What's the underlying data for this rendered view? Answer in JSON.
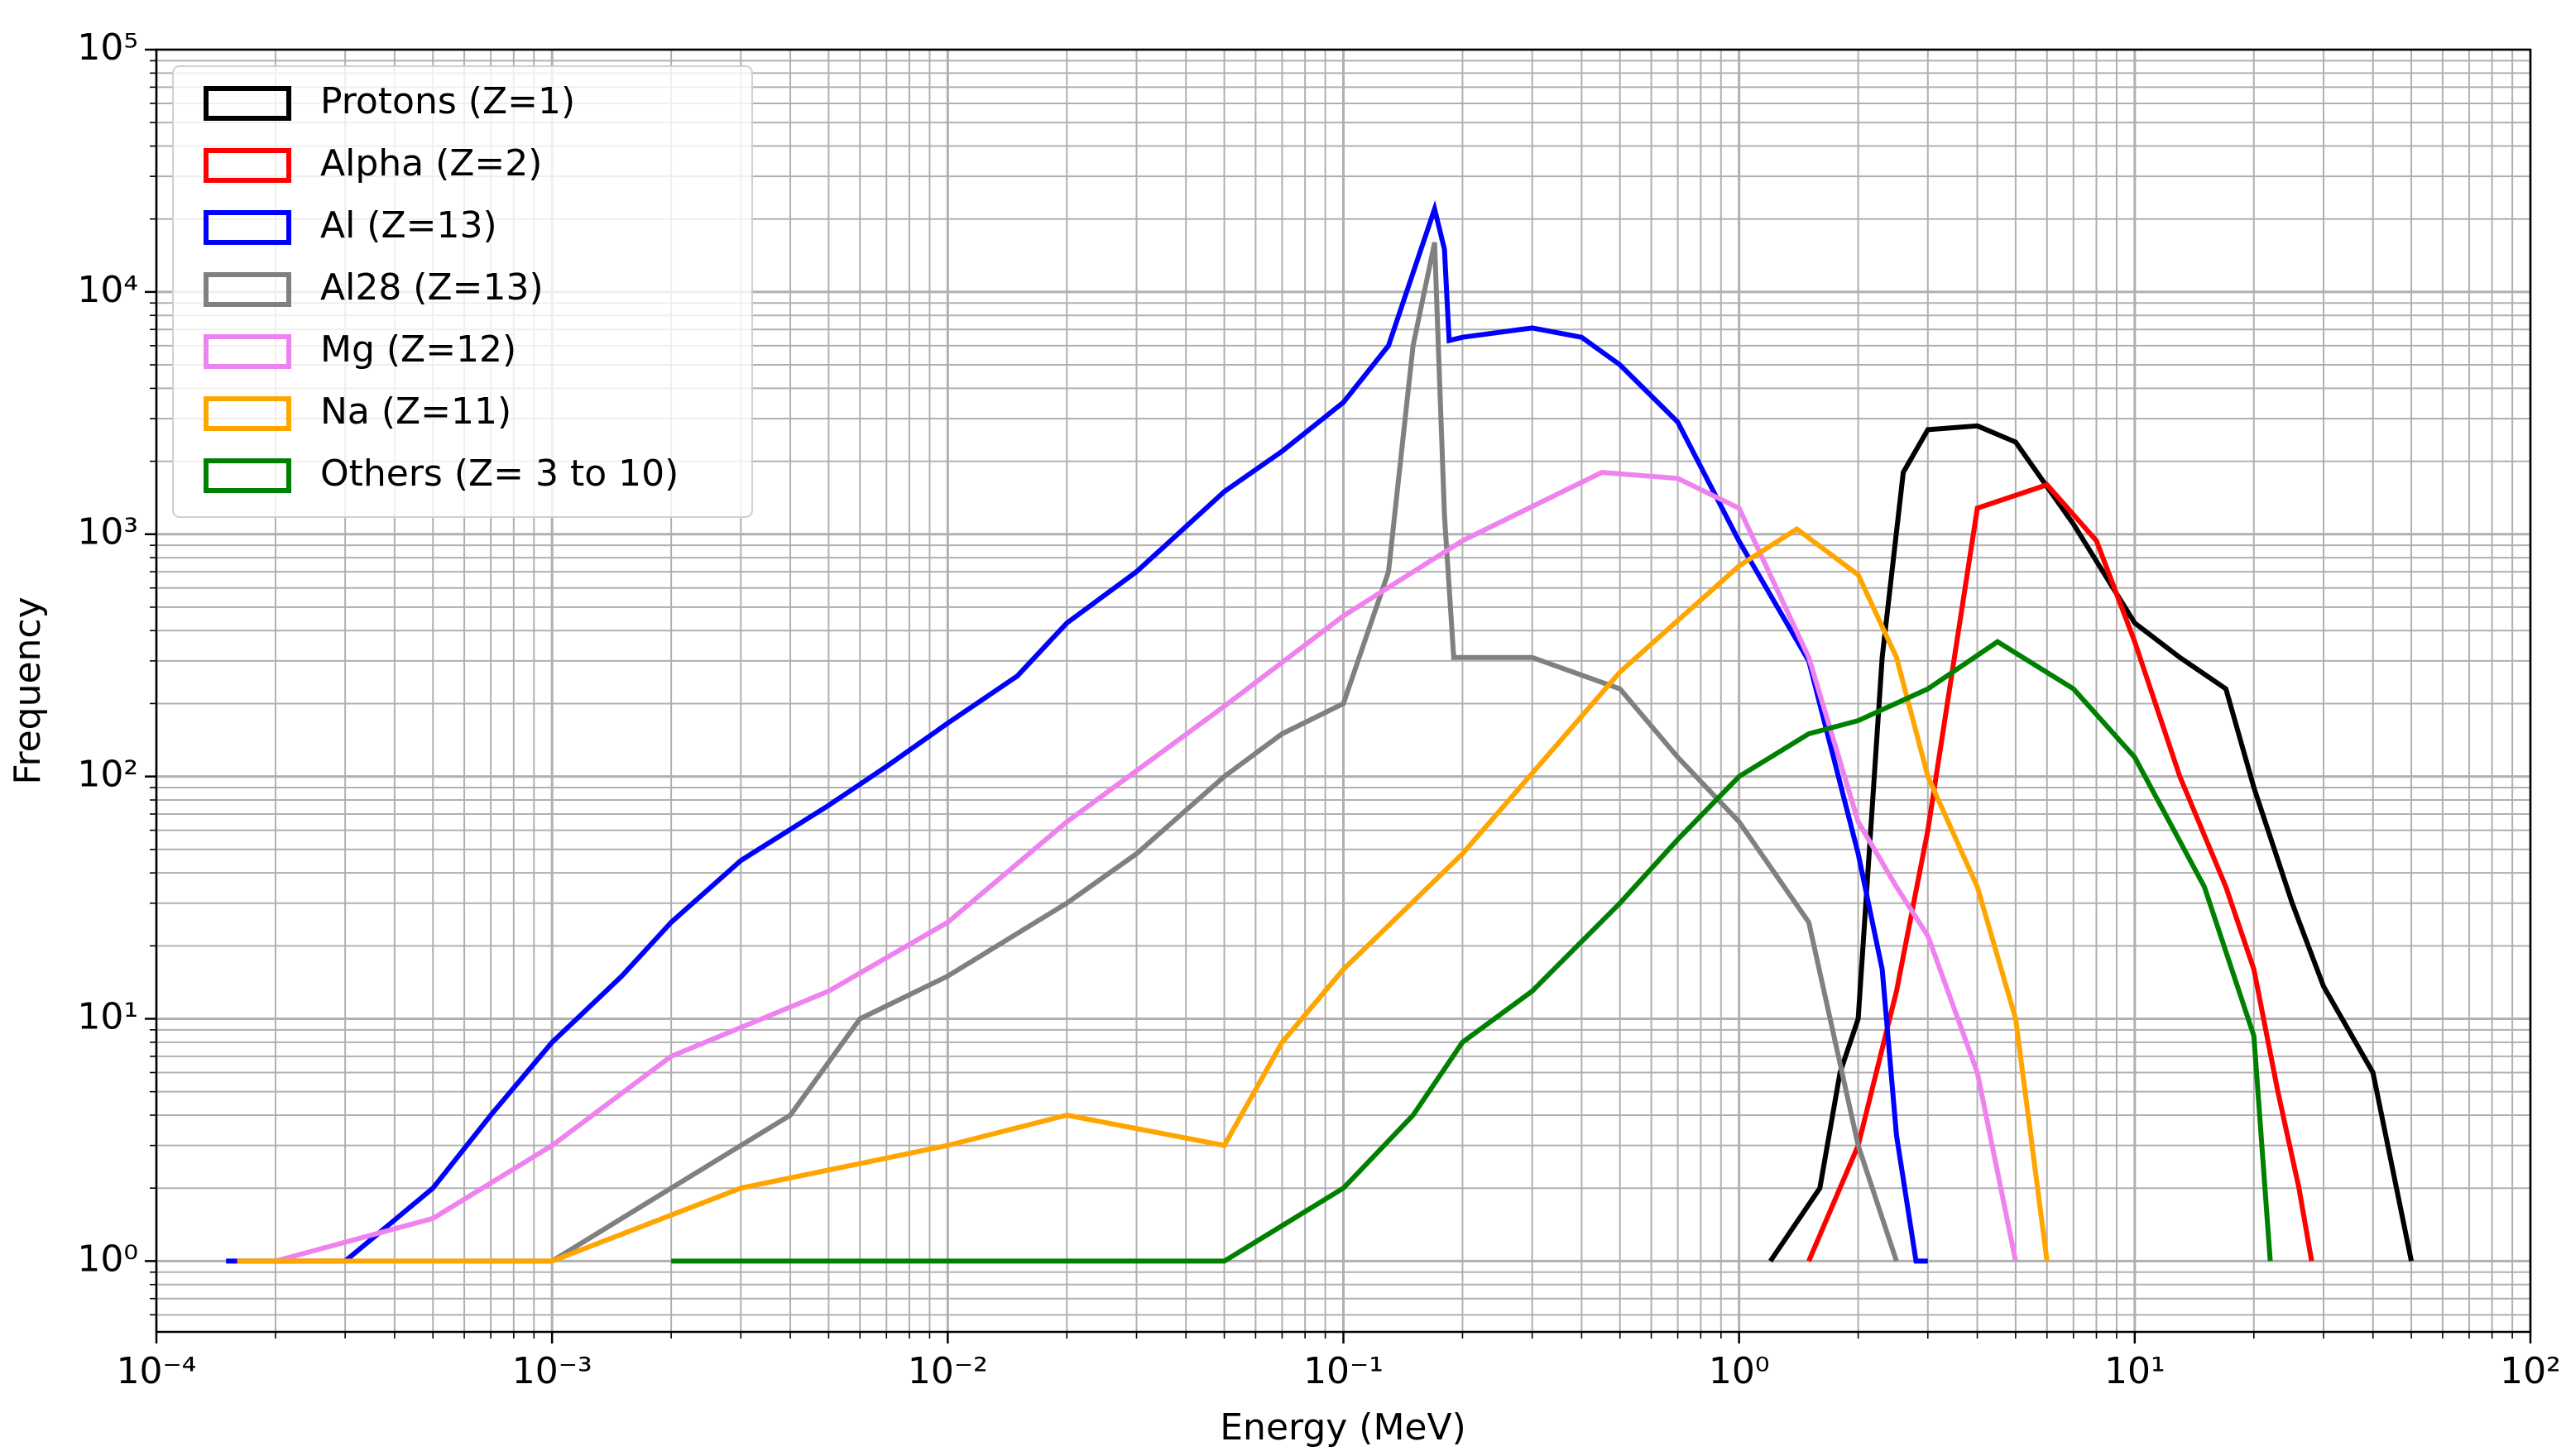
{
  "chart_data": {
    "type": "line",
    "xlabel": "Energy (MeV)",
    "ylabel": "Frequency",
    "xscale": "log",
    "yscale": "log",
    "xlim": [
      0.0001,
      100
    ],
    "ylim": [
      0.51,
      100000
    ],
    "xticks": [
      {
        "value": 0.0001,
        "label": "10⁻⁴"
      },
      {
        "value": 0.001,
        "label": "10⁻³"
      },
      {
        "value": 0.01,
        "label": "10⁻²"
      },
      {
        "value": 0.1,
        "label": "10⁻¹"
      },
      {
        "value": 1,
        "label": "10⁰"
      },
      {
        "value": 10,
        "label": "10¹"
      },
      {
        "value": 100,
        "label": "10²"
      }
    ],
    "yticks": [
      {
        "value": 1,
        "label": "10⁰"
      },
      {
        "value": 10,
        "label": "10¹"
      },
      {
        "value": 100,
        "label": "10²"
      },
      {
        "value": 1000,
        "label": "10³"
      },
      {
        "value": 10000,
        "label": "10⁴"
      },
      {
        "value": 100000,
        "label": "10⁵"
      }
    ],
    "grid": true,
    "minor_grid": true,
    "legend": "upper left",
    "series": [
      {
        "name": "Protons (Z=1)",
        "color": "#000000",
        "x": [
          1.2,
          1.6,
          1.8,
          2,
          2.3,
          2.6,
          3,
          4,
          5,
          7,
          10,
          13,
          17,
          20,
          25,
          30,
          40,
          50
        ],
        "values": [
          1,
          2,
          6,
          10,
          310,
          1800,
          2700,
          2800,
          2400,
          1100,
          430,
          310,
          230,
          90,
          30,
          13.6,
          6,
          1
        ]
      },
      {
        "name": "Alpha (Z=2)",
        "color": "#ff0000",
        "x": [
          1.5,
          2,
          2.5,
          3,
          4,
          6,
          8,
          10,
          13,
          17,
          20,
          23,
          26,
          28
        ],
        "values": [
          1,
          3,
          13,
          60,
          1280,
          1600,
          940,
          360,
          100,
          35,
          16,
          5,
          2,
          1
        ]
      },
      {
        "name": "Al (Z=13)",
        "color": "#0000ff",
        "x": [
          0.00015,
          0.0003,
          0.0005,
          0.0007,
          0.001,
          0.0015,
          0.002,
          0.003,
          0.005,
          0.007,
          0.01,
          0.015,
          0.02,
          0.03,
          0.05,
          0.07,
          0.1,
          0.13,
          0.15,
          0.17,
          0.18,
          0.185,
          0.2,
          0.3,
          0.4,
          0.5,
          0.7,
          1,
          1.5,
          2,
          2.3,
          2.5,
          2.8,
          3
        ],
        "values": [
          1,
          1,
          2,
          4,
          8,
          15,
          25,
          45,
          76,
          110,
          166,
          260,
          430,
          700,
          1500,
          2200,
          3500,
          6000,
          12000,
          22000,
          15000,
          6300,
          6500,
          7100,
          6500,
          5000,
          2900,
          935,
          300,
          48,
          16,
          3.3,
          1,
          1
        ]
      },
      {
        "name": "Al28 (Z=13)",
        "color": "#808080",
        "x": [
          0.0006,
          0.001,
          0.002,
          0.004,
          0.006,
          0.01,
          0.02,
          0.03,
          0.05,
          0.07,
          0.1,
          0.13,
          0.15,
          0.17,
          0.18,
          0.19,
          0.3,
          0.5,
          0.7,
          1,
          1.5,
          2,
          2.5
        ],
        "values": [
          1,
          1,
          2,
          4,
          10,
          15,
          30,
          48,
          100,
          150,
          200,
          700,
          6000,
          16000,
          1200,
          310,
          310,
          230,
          120,
          65,
          25,
          3,
          1
        ]
      },
      {
        "name": "Mg (Z=12)",
        "color": "#ee82ee",
        "x": [
          0.0002,
          0.0005,
          0.001,
          0.002,
          0.005,
          0.01,
          0.02,
          0.05,
          0.1,
          0.2,
          0.45,
          0.7,
          1,
          1.5,
          2,
          2.5,
          3,
          4,
          5
        ],
        "values": [
          1,
          1.5,
          3,
          7,
          13,
          25,
          65,
          195,
          460,
          940,
          1800,
          1700,
          1280,
          310,
          65,
          35,
          22,
          6,
          1
        ]
      },
      {
        "name": "Na (Z=11)",
        "color": "#ffa500",
        "x": [
          0.00016,
          0.001,
          0.003,
          0.01,
          0.02,
          0.05,
          0.07,
          0.1,
          0.2,
          0.5,
          1,
          1.4,
          2,
          2.5,
          3,
          4,
          5,
          6
        ],
        "values": [
          1,
          1,
          2,
          3,
          4,
          3,
          8,
          16,
          48,
          270,
          740,
          1050,
          680,
          310,
          100,
          35,
          10,
          1
        ]
      },
      {
        "name": "Others (Z= 3 to 10)",
        "color": "#008000",
        "x": [
          0.002,
          0.005,
          0.01,
          0.02,
          0.05,
          0.1,
          0.15,
          0.2,
          0.3,
          0.5,
          0.7,
          1,
          1.5,
          2,
          3,
          4.5,
          7,
          10,
          15,
          20,
          22
        ],
        "values": [
          1,
          1,
          1,
          1,
          1,
          2,
          4,
          8,
          13,
          30,
          55,
          100,
          150,
          170,
          230,
          360,
          230,
          120,
          35,
          8.5,
          1
        ]
      }
    ]
  }
}
